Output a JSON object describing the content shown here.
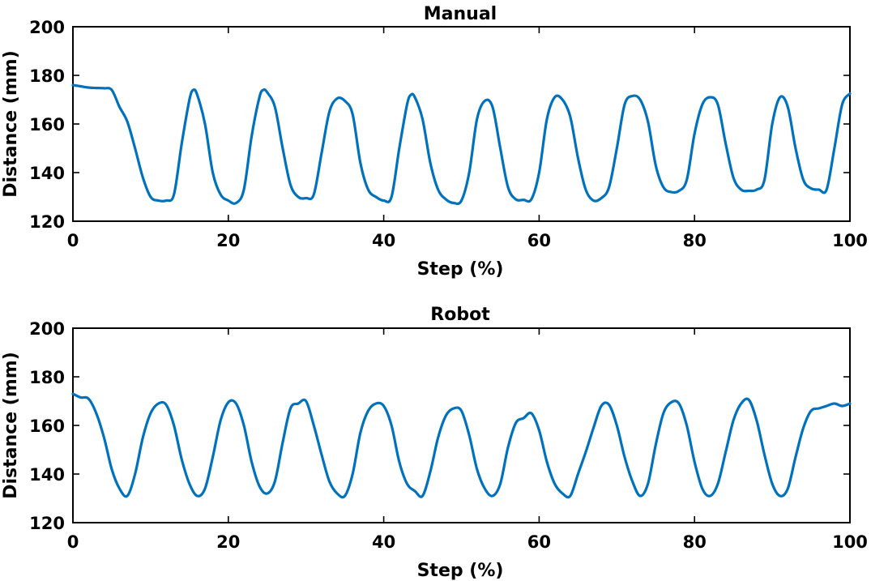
{
  "chart_data": [
    {
      "type": "line",
      "title": "Manual",
      "xlabel": "Step (%)",
      "ylabel": "Distance (mm)",
      "xlim": [
        0,
        100
      ],
      "ylim": [
        120,
        200
      ],
      "xticks": [
        "0",
        "20",
        "40",
        "60",
        "80",
        "100"
      ],
      "yticks": [
        "120",
        "140",
        "160",
        "180",
        "200"
      ],
      "grid": false,
      "color": "#0072BD",
      "series": [
        {
          "x": [
            0,
            1,
            2,
            3,
            4,
            5,
            6,
            7,
            8,
            9,
            10,
            11,
            12,
            13,
            14,
            15,
            15.5,
            16,
            17,
            18,
            19,
            20,
            21,
            22,
            23,
            24,
            24.5,
            25,
            26,
            27,
            28,
            29,
            30,
            31,
            32,
            33,
            34,
            35,
            36,
            37,
            38,
            39,
            40,
            41,
            42,
            43,
            43.5,
            44,
            45,
            46,
            47,
            48,
            49,
            50,
            51,
            52,
            53,
            54,
            55,
            56,
            57,
            58,
            59,
            60,
            61,
            62,
            63,
            64,
            65,
            66,
            67,
            68,
            69,
            70,
            71,
            72,
            73,
            74,
            75,
            76,
            77,
            78,
            79,
            80,
            81,
            82,
            83,
            84,
            85,
            86,
            87,
            88,
            89,
            90,
            91,
            92,
            93,
            94,
            95,
            96,
            97,
            98,
            99,
            100
          ],
          "y": [
            176,
            175.5,
            175,
            174.8,
            174.7,
            174,
            167,
            161,
            150,
            138,
            130,
            128.5,
            128.5,
            131,
            152,
            170,
            174,
            172,
            160,
            140,
            131,
            128.5,
            127.5,
            133,
            155,
            171,
            174,
            173,
            167,
            150,
            135,
            130,
            129.5,
            131,
            148,
            165,
            170.5,
            169.5,
            164,
            144,
            133,
            130,
            128.5,
            130,
            150,
            168,
            172,
            171,
            162,
            144,
            133,
            129,
            127.5,
            128.5,
            140,
            162,
            169.5,
            167,
            150,
            134,
            129,
            128.8,
            129,
            140,
            162,
            171,
            170,
            163,
            146,
            133,
            128.5,
            129.5,
            134,
            150,
            168,
            171.5,
            170,
            161,
            143,
            134,
            132,
            132.5,
            137,
            156,
            168,
            171,
            168,
            152,
            138,
            133,
            132.5,
            133,
            137,
            160,
            171,
            167,
            150,
            137,
            133.5,
            133,
            133,
            150,
            168,
            172.5
          ]
        }
      ]
    },
    {
      "type": "line",
      "title": "Robot",
      "xlabel": "Step (%)",
      "ylabel": "Distance (mm)",
      "xlim": [
        0,
        100
      ],
      "ylim": [
        120,
        200
      ],
      "xticks": [
        "0",
        "20",
        "40",
        "60",
        "80",
        "100"
      ],
      "yticks": [
        "120",
        "140",
        "160",
        "180",
        "200"
      ],
      "grid": false,
      "color": "#0072BD",
      "series": [
        {
          "x": [
            0,
            1,
            2,
            3,
            4,
            5,
            6,
            7,
            8,
            9,
            10,
            11,
            12,
            13,
            14,
            15,
            16,
            17,
            18,
            19,
            20,
            21,
            22,
            23,
            24,
            25,
            26,
            27,
            28,
            29,
            30,
            31,
            32,
            33,
            34,
            35,
            36,
            37,
            38,
            39,
            40,
            41,
            42,
            43,
            44,
            45,
            46,
            47,
            48,
            49,
            50,
            51,
            52,
            53,
            54,
            55,
            56,
            57,
            58,
            59,
            60,
            61,
            62,
            63,
            64,
            65,
            66,
            67,
            68,
            69,
            70,
            71,
            72,
            73,
            74,
            75,
            76,
            77,
            78,
            79,
            80,
            81,
            82,
            83,
            84,
            85,
            86,
            87,
            88,
            89,
            90,
            91,
            92,
            93,
            94,
            95,
            96,
            97,
            98,
            99,
            100
          ],
          "y": [
            173,
            171.5,
            171,
            165,
            155,
            142,
            134,
            131,
            140,
            155,
            165,
            169,
            168.5,
            160,
            146,
            136,
            131,
            134,
            147,
            162,
            169.5,
            169,
            160,
            145,
            135,
            132,
            137,
            153,
            167,
            169,
            170,
            160,
            148,
            137,
            132,
            131,
            140,
            157,
            166,
            169,
            168,
            160,
            145,
            136,
            133,
            131,
            141,
            155,
            164,
            167,
            166,
            156,
            142,
            134,
            131,
            136,
            151,
            161,
            163,
            165,
            158,
            145,
            136,
            132,
            131,
            140,
            149,
            159,
            168,
            168.5,
            160,
            147,
            137,
            131,
            136,
            152,
            165,
            169.5,
            169,
            160,
            145,
            134,
            131,
            136,
            149,
            162,
            169,
            170.5,
            162,
            148,
            136,
            131,
            134,
            147,
            159,
            166,
            167,
            168,
            169,
            168,
            169
          ]
        }
      ]
    }
  ]
}
